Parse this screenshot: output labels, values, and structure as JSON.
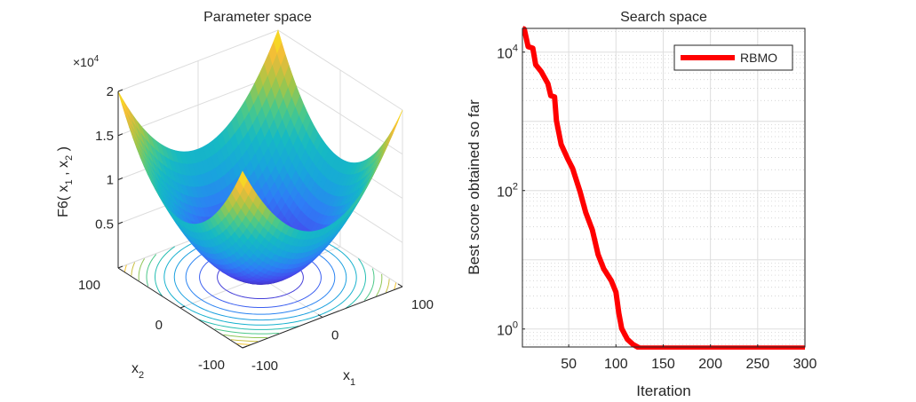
{
  "chart_data": [
    {
      "type": "surface",
      "title": "Parameter space",
      "xlabel": {
        "base": "x",
        "sub": "1"
      },
      "ylabel": {
        "base": "x",
        "sub": "2"
      },
      "zlabel": {
        "pre": "F6( x",
        "sub1": "1",
        "mid": " , x",
        "sub2": "2",
        "post": " )"
      },
      "xlim": [
        -100,
        100
      ],
      "ylim": [
        -100,
        100
      ],
      "zlim": [
        0,
        20000
      ],
      "x_ticks": [
        "-100",
        "0",
        "100"
      ],
      "y_ticks": [
        "-100",
        "0",
        "100"
      ],
      "z_ticks": [
        "0.5",
        "1",
        "1.5",
        "2"
      ],
      "z_exponent": {
        "times": "×10",
        "power": "4"
      },
      "contour_levels": [
        1800,
        3600,
        5400,
        7200,
        9000,
        10800,
        12600,
        14400,
        16200,
        18000,
        19800
      ],
      "colormap": "parula"
    },
    {
      "type": "line",
      "title": "Search space",
      "xlabel": "Iteration",
      "ylabel": "Best score obtained so far",
      "xlim": [
        1,
        300
      ],
      "ylim": [
        0.55,
        22000
      ],
      "yscale": "log",
      "grid": true,
      "x_ticks": [
        "50",
        "100",
        "150",
        "200",
        "250",
        "300"
      ],
      "y_ticks": [
        {
          "base": "10",
          "exp": "4"
        },
        {
          "base": "10",
          "exp": "2"
        },
        {
          "base": "10",
          "exp": "0"
        }
      ],
      "legend": {
        "placement": "top-right",
        "entries": [
          "RBMO"
        ]
      },
      "series": [
        {
          "name": "RBMO",
          "color": "#ff0000",
          "x": [
            1,
            3,
            7,
            12,
            15,
            21,
            28,
            31,
            35,
            37,
            42,
            49,
            54,
            62,
            68,
            75,
            81,
            87,
            95,
            100,
            103,
            106,
            112,
            118,
            125,
            300
          ],
          "y": [
            22000,
            21500,
            12000,
            11400,
            6600,
            5200,
            3500,
            2350,
            2250,
            1020,
            465,
            285,
            210,
            96,
            48,
            27,
            12,
            7.4,
            5,
            3.4,
            1.7,
            1.02,
            0.71,
            0.6,
            0.53,
            0.53
          ]
        }
      ]
    }
  ]
}
